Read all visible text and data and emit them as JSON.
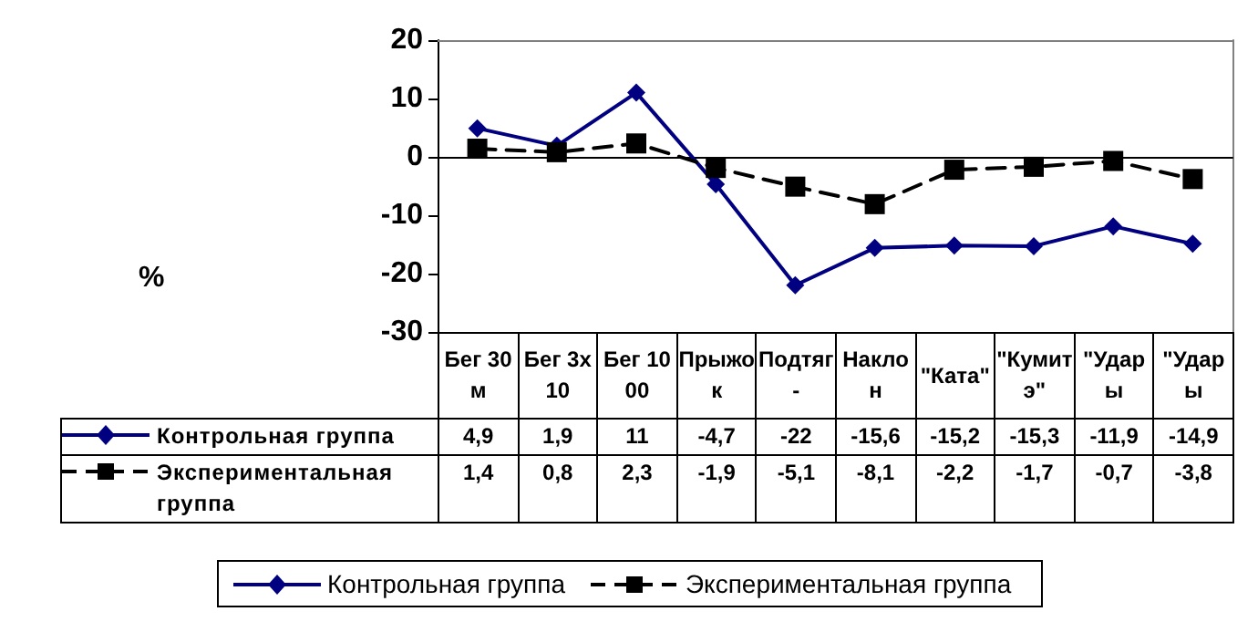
{
  "chart_data": {
    "type": "line",
    "annotations": [
      "%"
    ],
    "categories": [
      "Бег 30м",
      "Бег 3х10",
      "Бег 1000",
      "Прыжок",
      "Подтяг-",
      "Наклон",
      "\"Ката\"",
      "\"Кумитэ\"",
      "\"Удары",
      "\"Удары"
    ],
    "series": [
      {
        "name": "Контрольная группа",
        "color": "#000080",
        "marker": "diamond",
        "line_style": "solid",
        "values": [
          4.9,
          1.9,
          11,
          -4.7,
          -22,
          -15.6,
          -15.2,
          -15.3,
          -11.9,
          -14.9
        ],
        "value_labels": [
          "4,9",
          "1,9",
          "11",
          "-4,7",
          "-22",
          "-15,6",
          "-15,2",
          "-15,3",
          "-11,9",
          "-14,9"
        ]
      },
      {
        "name": "Экспериментальная группа",
        "color": "#000000",
        "marker": "square",
        "line_style": "dashed",
        "values": [
          1.4,
          0.8,
          2.3,
          -1.9,
          -5.1,
          -8.1,
          -2.2,
          -1.7,
          -0.7,
          -3.8
        ],
        "value_labels": [
          "1,4",
          "0,8",
          "2,3",
          "-1,9",
          "-5,1",
          "-8,1",
          "-2,2",
          "-1,7",
          "-0,7",
          "-3,8"
        ]
      }
    ],
    "ylim": [
      -30,
      20
    ],
    "yticks": [
      -30,
      -20,
      -10,
      0,
      10,
      20
    ],
    "legend": "bottom"
  }
}
